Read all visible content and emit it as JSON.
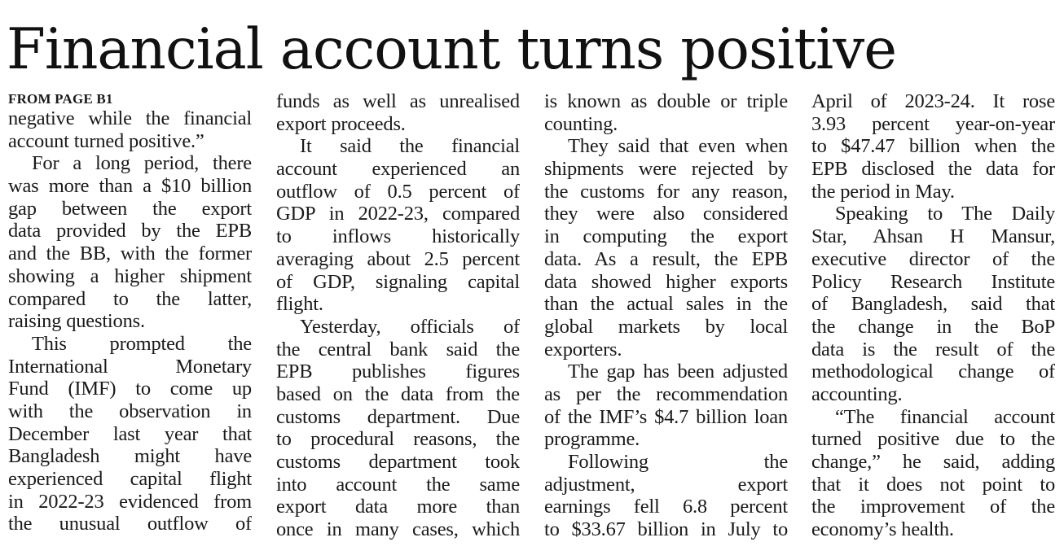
{
  "headline": "Financial account turns positive",
  "kicker": "FROM PAGE B1",
  "columns": [
    {
      "lines": [
        {
          "text": "negative while the financial",
          "para": false,
          "last": false
        },
        {
          "text": "account turned positive.”",
          "para": false,
          "last": true
        },
        {
          "text": "For a long period, there",
          "para": true,
          "last": false
        },
        {
          "text": "was more than a $10 billion",
          "para": false,
          "last": false
        },
        {
          "text": "gap between the export",
          "para": false,
          "last": false
        },
        {
          "text": "data provided by the EPB",
          "para": false,
          "last": false
        },
        {
          "text": "and the BB, with the former",
          "para": false,
          "last": false
        },
        {
          "text": "showing a higher shipment",
          "para": false,
          "last": false
        },
        {
          "text": "compared to the latter,",
          "para": false,
          "last": false
        },
        {
          "text": "raising questions.",
          "para": false,
          "last": true
        },
        {
          "text": "This prompted the",
          "para": true,
          "last": false
        },
        {
          "text": "International Monetary",
          "para": false,
          "last": false
        },
        {
          "text": "Fund (IMF) to come up",
          "para": false,
          "last": false
        },
        {
          "text": "with the observation in",
          "para": false,
          "last": false
        },
        {
          "text": "December last year that",
          "para": false,
          "last": false
        },
        {
          "text": "Bangladesh might have",
          "para": false,
          "last": false
        },
        {
          "text": "experienced capital flight",
          "para": false,
          "last": false
        },
        {
          "text": "in 2022-23 evidenced from",
          "para": false,
          "last": false
        },
        {
          "text": "the unusual outflow of",
          "para": false,
          "last": false
        }
      ]
    },
    {
      "lines": [
        {
          "text": "funds as well as unrealised",
          "para": false,
          "last": false
        },
        {
          "text": "export proceeds.",
          "para": false,
          "last": true
        },
        {
          "text": "It said the financial",
          "para": true,
          "last": false
        },
        {
          "text": "account experienced an",
          "para": false,
          "last": false
        },
        {
          "text": "outflow of 0.5 percent of",
          "para": false,
          "last": false
        },
        {
          "text": "GDP in 2022-23, compared",
          "para": false,
          "last": false
        },
        {
          "text": "to inflows historically",
          "para": false,
          "last": false
        },
        {
          "text": "averaging about 2.5 percent",
          "para": false,
          "last": false
        },
        {
          "text": "of GDP, signaling capital",
          "para": false,
          "last": false
        },
        {
          "text": "flight.",
          "para": false,
          "last": true
        },
        {
          "text": "Yesterday, officials of",
          "para": true,
          "last": false
        },
        {
          "text": "the central bank said the",
          "para": false,
          "last": false
        },
        {
          "text": "EPB publishes figures",
          "para": false,
          "last": false
        },
        {
          "text": "based on the data from the",
          "para": false,
          "last": false
        },
        {
          "text": "customs department. Due",
          "para": false,
          "last": false
        },
        {
          "text": "to procedural reasons, the",
          "para": false,
          "last": false
        },
        {
          "text": "customs department took",
          "para": false,
          "last": false
        },
        {
          "text": "into account the same",
          "para": false,
          "last": false
        },
        {
          "text": "export data more than",
          "para": false,
          "last": false
        },
        {
          "text": "once in many cases, which",
          "para": false,
          "last": false
        }
      ]
    },
    {
      "lines": [
        {
          "text": "is known as double or triple",
          "para": false,
          "last": false
        },
        {
          "text": "counting.",
          "para": false,
          "last": true
        },
        {
          "text": "They said that even when",
          "para": true,
          "last": false
        },
        {
          "text": "shipments were rejected by",
          "para": false,
          "last": false
        },
        {
          "text": "the customs for any reason,",
          "para": false,
          "last": false
        },
        {
          "text": "they were also considered",
          "para": false,
          "last": false
        },
        {
          "text": "in computing the export",
          "para": false,
          "last": false
        },
        {
          "text": "data. As a result, the EPB",
          "para": false,
          "last": false
        },
        {
          "text": "data showed higher exports",
          "para": false,
          "last": false
        },
        {
          "text": "than the actual sales in the",
          "para": false,
          "last": false
        },
        {
          "text": "global markets by local",
          "para": false,
          "last": false
        },
        {
          "text": "exporters.",
          "para": false,
          "last": true
        },
        {
          "text": "The gap has been adjusted",
          "para": true,
          "last": false
        },
        {
          "text": "as per the recommendation",
          "para": false,
          "last": false
        },
        {
          "text": "of the IMF’s $4.7 billion loan",
          "para": false,
          "last": false
        },
        {
          "text": "programme.",
          "para": false,
          "last": true
        },
        {
          "text": "Following the",
          "para": true,
          "last": false
        },
        {
          "text": "adjustment, export",
          "para": false,
          "last": false
        },
        {
          "text": "earnings fell 6.8 percent",
          "para": false,
          "last": false
        },
        {
          "text": "to $33.67 billion in July to",
          "para": false,
          "last": false
        }
      ]
    },
    {
      "lines": [
        {
          "text": "April of 2023-24. It rose",
          "para": false,
          "last": false
        },
        {
          "text": "3.93 percent year-on-year",
          "para": false,
          "last": false
        },
        {
          "text": "to $47.47 billion when the",
          "para": false,
          "last": false
        },
        {
          "text": "EPB disclosed the data for",
          "para": false,
          "last": false
        },
        {
          "text": "the period in May.",
          "para": false,
          "last": true
        },
        {
          "text": "Speaking to The Daily",
          "para": true,
          "last": false
        },
        {
          "text": "Star, Ahsan H Mansur,",
          "para": false,
          "last": false
        },
        {
          "text": "executive director of the",
          "para": false,
          "last": false
        },
        {
          "text": "Policy Research Institute",
          "para": false,
          "last": false
        },
        {
          "text": "of Bangladesh, said that",
          "para": false,
          "last": false
        },
        {
          "text": "the change in the BoP",
          "para": false,
          "last": false
        },
        {
          "text": "data is the result of the",
          "para": false,
          "last": false
        },
        {
          "text": "methodological change of",
          "para": false,
          "last": false
        },
        {
          "text": "accounting.",
          "para": false,
          "last": true
        },
        {
          "text": "“The financial account",
          "para": true,
          "last": false
        },
        {
          "text": "turned positive due to the",
          "para": false,
          "last": false
        },
        {
          "text": "change,” he said, adding",
          "para": false,
          "last": false
        },
        {
          "text": "that it does not point to",
          "para": false,
          "last": false
        },
        {
          "text": "the improvement of the",
          "para": false,
          "last": false
        },
        {
          "text": "economy’s health.",
          "para": false,
          "last": true
        }
      ]
    }
  ]
}
